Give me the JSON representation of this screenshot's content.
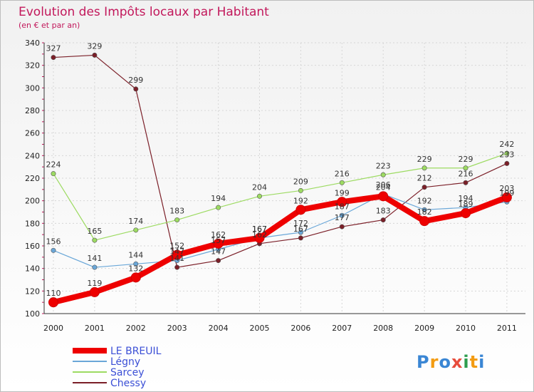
{
  "chart_data": {
    "type": "line",
    "title": "Evolution des Impôts locaux par Habitant",
    "subtitle": "(en € et par an)",
    "xlabel": "",
    "ylabel": "",
    "categories": [
      "2000",
      "2001",
      "2002",
      "2003",
      "2004",
      "2005",
      "2006",
      "2007",
      "2008",
      "2009",
      "2010",
      "2011"
    ],
    "ylim": [
      100,
      340
    ],
    "yticks": [
      100,
      120,
      140,
      160,
      180,
      200,
      220,
      240,
      260,
      280,
      300,
      320,
      340
    ],
    "grid": true,
    "legend_position": "bottom-left",
    "series": [
      {
        "name": "Chessy",
        "color": "#7b1f28",
        "width": 1.2,
        "values": [
          327,
          329,
          299,
          141,
          147,
          162,
          167,
          177,
          183,
          212,
          216,
          233
        ],
        "labels": [
          "327",
          "329",
          "299",
          "141",
          "147",
          "162",
          "167",
          "177",
          "183",
          "212",
          "216",
          "233"
        ]
      },
      {
        "name": "Sarcey",
        "color": "#9ddb62",
        "width": 1.2,
        "values": [
          224,
          165,
          174,
          183,
          194,
          204,
          209,
          216,
          223,
          229,
          229,
          242
        ],
        "labels": [
          "224",
          "165",
          "174",
          "183",
          "194",
          "204",
          "209",
          "216",
          "223",
          "229",
          "229",
          "242"
        ]
      },
      {
        "name": "Légny",
        "color": "#6aa7d8",
        "width": 1.2,
        "values": [
          156,
          141,
          144,
          147,
          157,
          167,
          172,
          187,
          206,
          192,
          194,
          199
        ],
        "labels": [
          "156",
          "141",
          "144",
          "147",
          "157",
          "167",
          "172",
          "187",
          "206",
          "192",
          "194",
          "199"
        ]
      },
      {
        "name": "LE BREUIL",
        "color": "#ee0000",
        "width": 8,
        "values": [
          110,
          119,
          132,
          152,
          162,
          167,
          192,
          199,
          204,
          182,
          189,
          203
        ],
        "labels": [
          "110",
          "119",
          "132",
          "152",
          "162",
          "167",
          "192",
          "199",
          "204",
          "182",
          "189",
          "203"
        ]
      }
    ],
    "legend": [
      "LE BREUIL",
      "Légny",
      "Sarcey",
      "Chessy"
    ]
  },
  "branding": {
    "logo_letters": [
      "P",
      "r",
      "o",
      "x",
      "i",
      "t",
      "i"
    ],
    "logo_colors": [
      "#3a86d4",
      "#f39c12",
      "#3a86d4",
      "#e74c3c",
      "#2e9e4f",
      "#f39c12",
      "#3a86d4"
    ]
  }
}
